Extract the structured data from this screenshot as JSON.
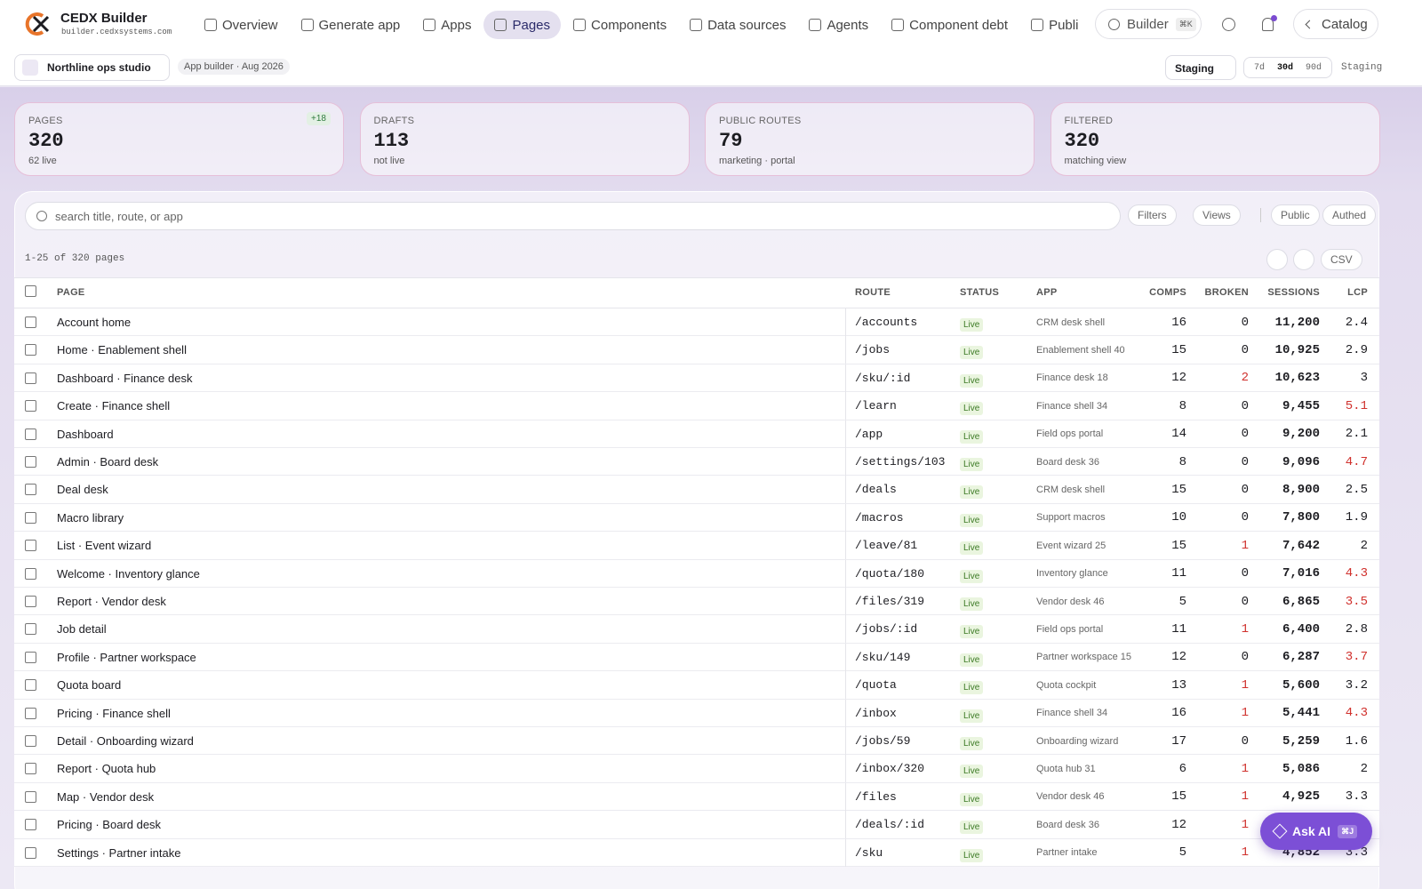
{
  "header": {
    "brand": "CEDX Builder",
    "domain": "builder.cedxsystems.com",
    "nav": [
      "Overview",
      "Generate app",
      "Apps",
      "Pages",
      "Components",
      "Data sources",
      "Agents",
      "Component debt",
      "Publi"
    ],
    "active_nav": "Pages",
    "search": "Builder",
    "search_kbd": "⌘K",
    "catalog": "Catalog"
  },
  "subbar": {
    "workspace": "Northline ops studio",
    "tag": "App builder · Aug 2026",
    "env": "Staging",
    "ranges": [
      "7d",
      "30d",
      "90d"
    ],
    "active_range": "30d",
    "env_label": "Staging"
  },
  "stats": [
    {
      "label": "PAGES",
      "value": 320,
      "sub": "62 live",
      "badge": "+18"
    },
    {
      "label": "DRAFTS",
      "value": 113,
      "sub": "not live"
    },
    {
      "label": "PUBLIC ROUTES",
      "value": 79,
      "sub": "marketing · portal"
    },
    {
      "label": "FILTERED",
      "value": 320,
      "sub": "matching view"
    }
  ],
  "toolbar": {
    "search_placeholder": "search title, route, or app",
    "filters": "Filters",
    "views": "Views",
    "chips": [
      "Public",
      "Authed"
    ],
    "count": "1-25 of 320 pages",
    "csv": "CSV"
  },
  "table": {
    "columns": [
      "PAGE",
      "ROUTE",
      "STATUS",
      "APP",
      "COMPS",
      "BROKEN",
      "SESSIONS",
      "LCP"
    ],
    "rows": [
      [
        "Account home",
        "/accounts",
        "Live",
        "CRM desk shell",
        16,
        0,
        "11,200",
        2.4
      ],
      [
        "Home · Enablement shell",
        "/jobs",
        "Live",
        "Enablement shell 40",
        15,
        0,
        "10,925",
        2.9
      ],
      [
        "Dashboard · Finance desk",
        "/sku/:id",
        "Live",
        "Finance desk 18",
        12,
        2,
        "10,623",
        3
      ],
      [
        "Create · Finance shell",
        "/learn",
        "Live",
        "Finance shell 34",
        8,
        0,
        "9,455",
        5.1
      ],
      [
        "Dashboard",
        "/app",
        "Live",
        "Field ops portal",
        14,
        0,
        "9,200",
        2.1
      ],
      [
        "Admin · Board desk",
        "/settings/103",
        "Live",
        "Board desk 36",
        8,
        0,
        "9,096",
        4.7
      ],
      [
        "Deal desk",
        "/deals",
        "Live",
        "CRM desk shell",
        15,
        0,
        "8,900",
        2.5
      ],
      [
        "Macro library",
        "/macros",
        "Live",
        "Support macros",
        10,
        0,
        "7,800",
        1.9
      ],
      [
        "List · Event wizard",
        "/leave/81",
        "Live",
        "Event wizard 25",
        15,
        1,
        "7,642",
        2
      ],
      [
        "Welcome · Inventory glance",
        "/quota/180",
        "Live",
        "Inventory glance",
        11,
        0,
        "7,016",
        4.3
      ],
      [
        "Report · Vendor desk",
        "/files/319",
        "Live",
        "Vendor desk 46",
        5,
        0,
        "6,865",
        3.5
      ],
      [
        "Job detail",
        "/jobs/:id",
        "Live",
        "Field ops portal",
        11,
        1,
        "6,400",
        2.8
      ],
      [
        "Profile · Partner workspace",
        "/sku/149",
        "Live",
        "Partner workspace 15",
        12,
        0,
        "6,287",
        3.7
      ],
      [
        "Quota board",
        "/quota",
        "Live",
        "Quota cockpit",
        13,
        1,
        "5,600",
        3.2
      ],
      [
        "Pricing · Finance shell",
        "/inbox",
        "Live",
        "Finance shell 34",
        16,
        1,
        "5,441",
        4.3
      ],
      [
        "Detail · Onboarding wizard",
        "/jobs/59",
        "Live",
        "Onboarding wizard",
        17,
        0,
        "5,259",
        1.6
      ],
      [
        "Report · Quota hub",
        "/inbox/320",
        "Live",
        "Quota hub 31",
        6,
        1,
        "5,086",
        2
      ],
      [
        "Map · Vendor desk",
        "/files",
        "Live",
        "Vendor desk 46",
        15,
        1,
        "4,925",
        3.3
      ],
      [
        "Pricing · Board desk",
        "/deals/:id",
        "Live",
        "Board desk 36",
        12,
        1,
        null,
        null
      ],
      [
        "Settings · Partner intake",
        "/sku",
        "Live",
        "Partner intake",
        5,
        1,
        "4,852",
        3.3
      ]
    ]
  },
  "ask_ai": {
    "label": "Ask AI",
    "kbd": "⌘J"
  }
}
